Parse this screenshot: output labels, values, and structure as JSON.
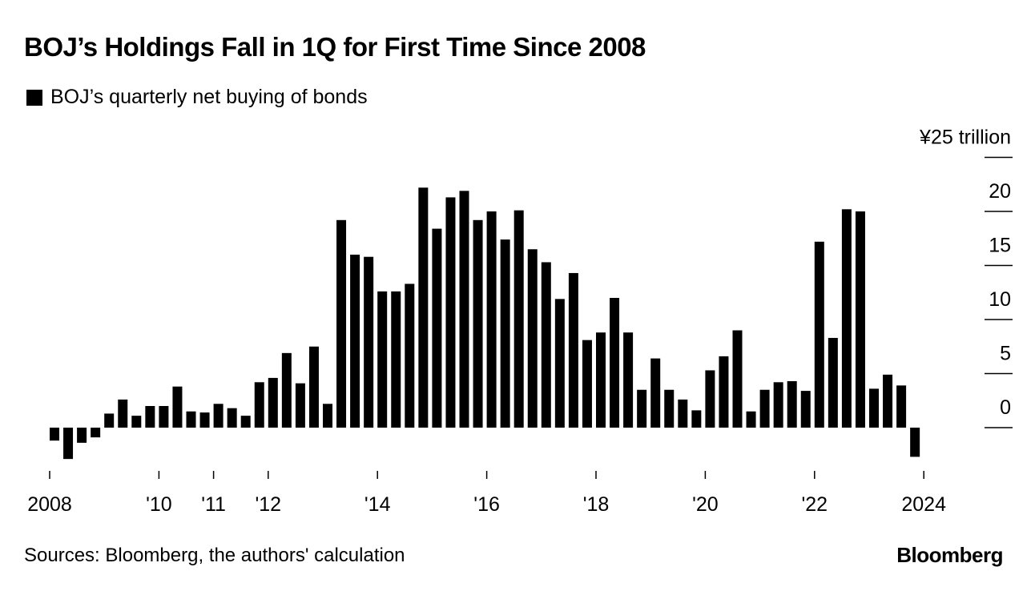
{
  "title": "BOJ’s Holdings Fall in 1Q for First Time Since 2008",
  "legend": {
    "label": "BOJ’s quarterly net buying of bonds",
    "color": "#000000"
  },
  "source": "Sources: Bloomberg, the authors' calculation",
  "brand": "Bloomberg",
  "chart_data": {
    "type": "bar",
    "title": "BOJ’s Holdings Fall in 1Q for First Time Since 2008",
    "series": [
      {
        "name": "BOJ’s quarterly net buying of bonds",
        "color": "#000000",
        "values": [
          -1.2,
          -2.9,
          -1.4,
          -0.9,
          1.3,
          2.6,
          1.1,
          2.0,
          2.0,
          3.8,
          1.5,
          1.4,
          2.2,
          1.8,
          1.1,
          4.2,
          4.6,
          6.9,
          4.1,
          7.5,
          2.2,
          19.2,
          16.0,
          15.8,
          12.6,
          12.6,
          13.3,
          22.2,
          18.4,
          21.3,
          21.9,
          19.2,
          20.0,
          17.4,
          20.1,
          16.5,
          15.3,
          11.9,
          14.3,
          8.1,
          8.8,
          12.0,
          8.8,
          3.5,
          6.4,
          3.5,
          2.6,
          1.6,
          5.3,
          6.6,
          9.0,
          1.5,
          3.5,
          4.2,
          4.3,
          3.4,
          17.2,
          8.3,
          20.2,
          20.0,
          3.6,
          4.9,
          3.9,
          -2.7
        ]
      }
    ],
    "x_start": 2008,
    "x_end": 2024,
    "bars_per_year": 4,
    "xticks": [
      {
        "year": 2008,
        "label": "2008"
      },
      {
        "year": 2010,
        "label": "'10"
      },
      {
        "year": 2011,
        "label": "'11"
      },
      {
        "year": 2012,
        "label": "'12"
      },
      {
        "year": 2014,
        "label": "'14"
      },
      {
        "year": 2016,
        "label": "'16"
      },
      {
        "year": 2018,
        "label": "'18"
      },
      {
        "year": 2020,
        "label": "'20"
      },
      {
        "year": 2022,
        "label": "'22"
      },
      {
        "year": 2024,
        "label": "2024"
      }
    ],
    "yticks": [
      {
        "value": 25,
        "label": "¥25 trillion"
      },
      {
        "value": 20,
        "label": "20"
      },
      {
        "value": 15,
        "label": "15"
      },
      {
        "value": 10,
        "label": "10"
      },
      {
        "value": 5,
        "label": "5"
      },
      {
        "value": 0,
        "label": "0"
      }
    ],
    "ylim": [
      -3,
      25
    ],
    "ylabel": "¥ trillion",
    "xlabel": "",
    "grid": false,
    "legend_position": "top-left"
  }
}
